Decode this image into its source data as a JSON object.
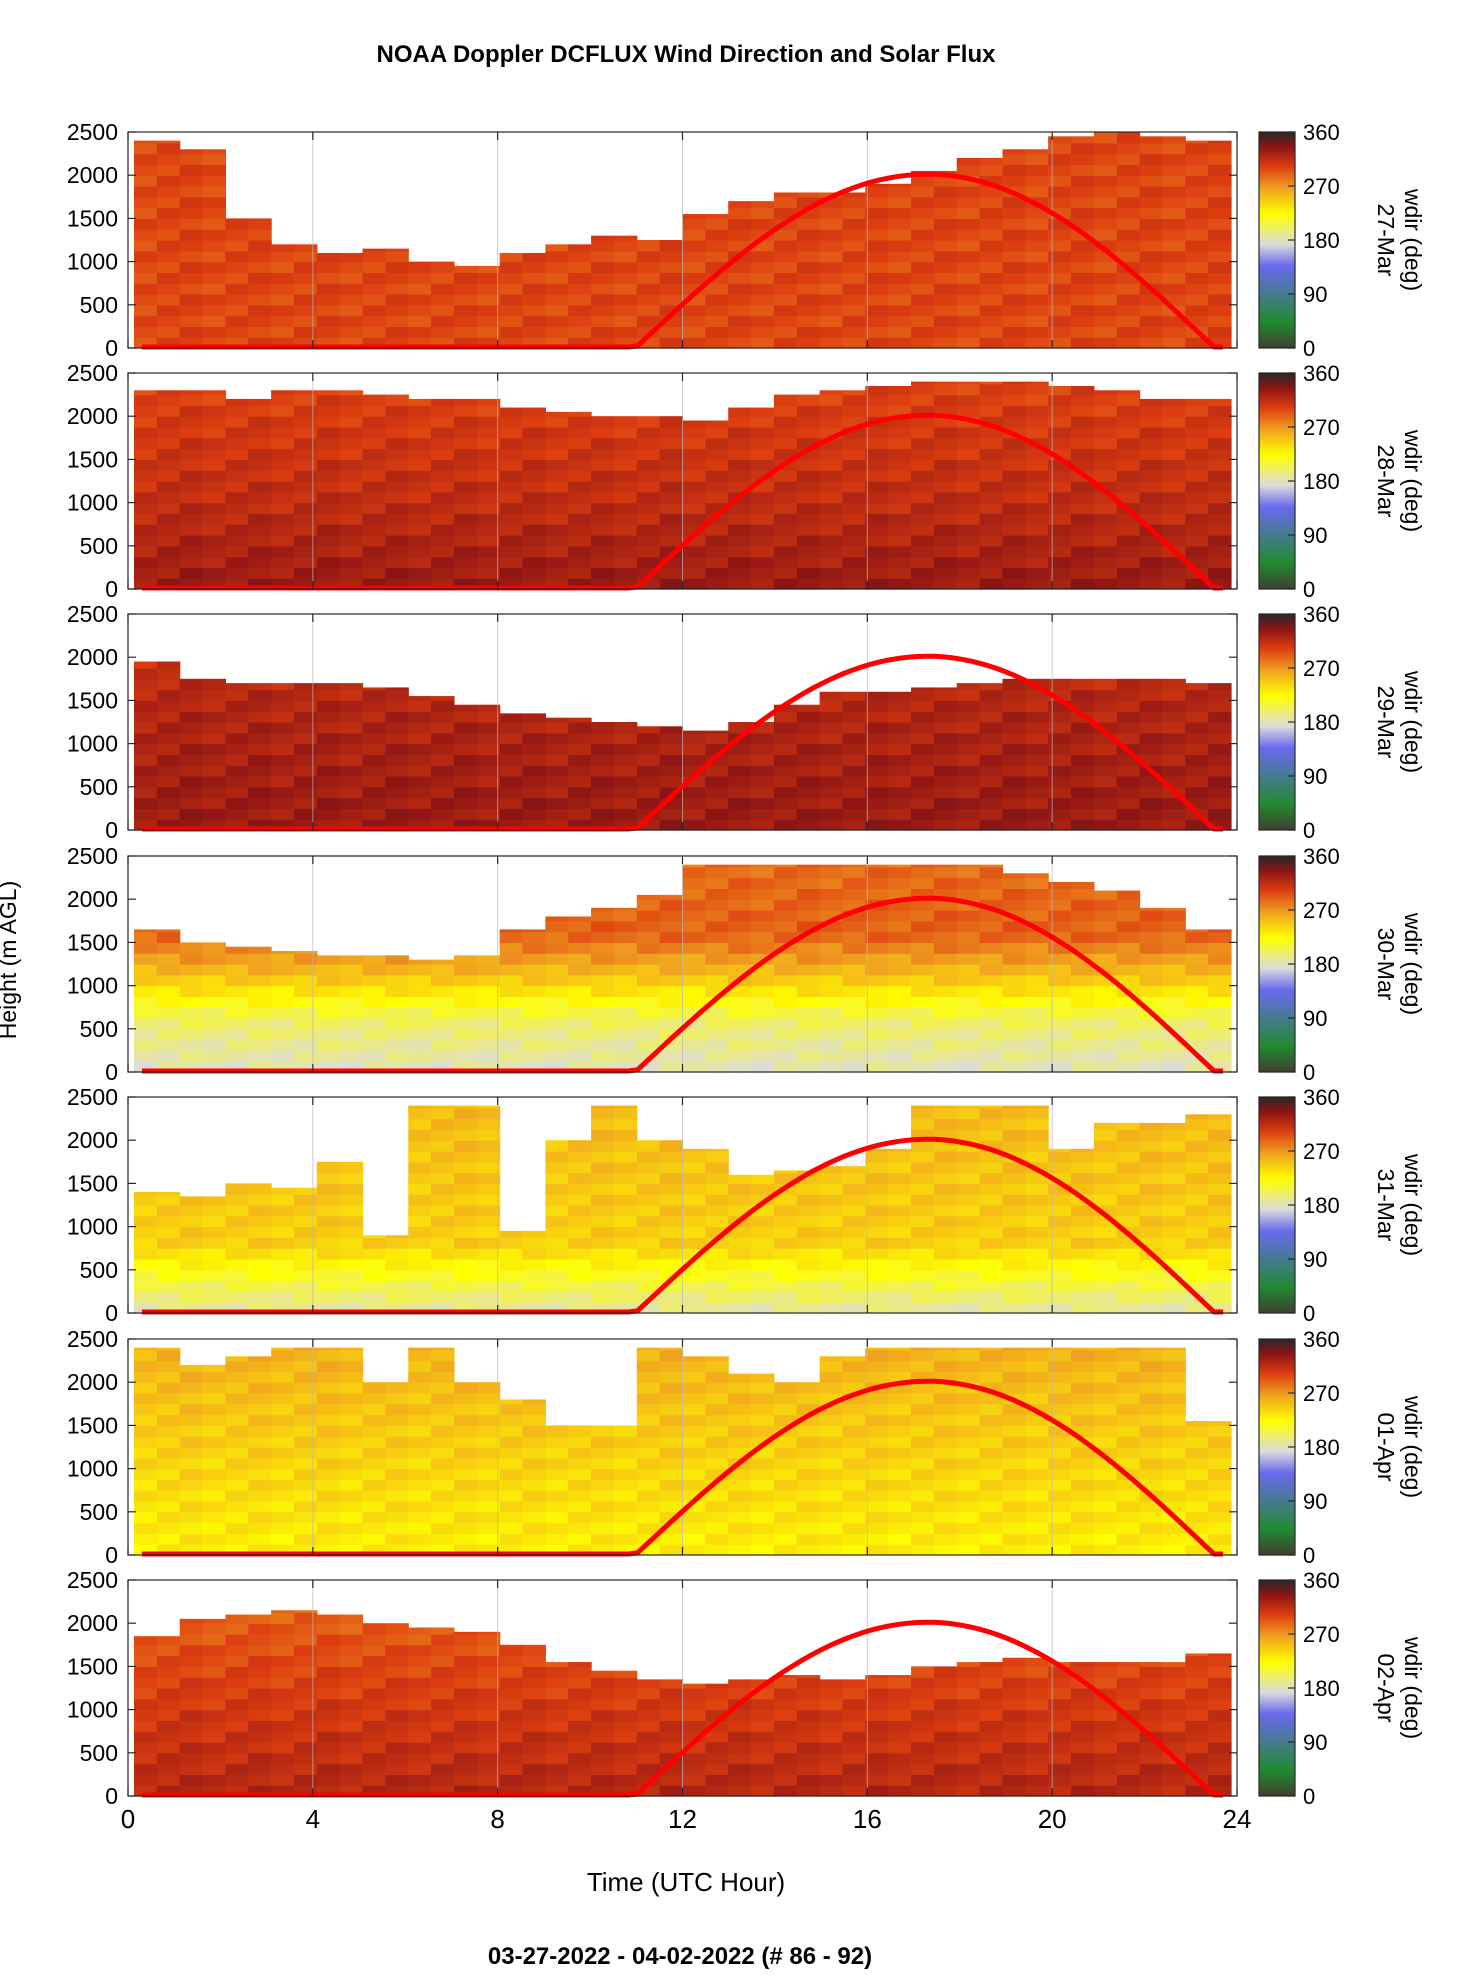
{
  "chart_data": {
    "type": "heatmap",
    "title": "NOAA Doppler DCFLUX Wind Direction and Solar Flux",
    "footer": "03-27-2022 - 04-02-2022   (# 86 - 92)",
    "xlabel": "Time (UTC Hour)",
    "ylabel": "Height (m AGL)",
    "xlim": [
      0,
      24
    ],
    "ylim": [
      0,
      2500
    ],
    "x_ticks": [
      "0",
      "4",
      "8",
      "12",
      "16",
      "20",
      "24"
    ],
    "y_ticks": [
      "0",
      "500",
      "1000",
      "1500",
      "2000",
      "2500"
    ],
    "colorbar": {
      "label": "wdir (deg)",
      "range": [
        0,
        360
      ],
      "ticks": [
        "0",
        "90",
        "180",
        "270",
        "360"
      ],
      "colors": [
        "#404030",
        "#208a30",
        "#6a6aee",
        "#dcdcdc",
        "#ffff00",
        "#f0a020",
        "#dd3d10",
        "#8c1414",
        "#282828"
      ]
    },
    "solar_flux_curve": {
      "color": "#ff0000",
      "sunrise_hour": 11.0,
      "sunset_hour": 23.5,
      "peak_hour": 17.3,
      "peak_height_equiv": 2000
    },
    "panels": [
      {
        "date": "27-Mar",
        "top_profile": [
          2400,
          2300,
          1500,
          1200,
          1100,
          1150,
          1000,
          950,
          1100,
          1200,
          1300,
          1250,
          1550,
          1700,
          1800,
          1800,
          1900,
          2050,
          2200,
          2300,
          2450,
          2500,
          2450,
          2400
        ],
        "profile": [
          {
            "h": 0,
            "wd": 300
          },
          {
            "h": 2500,
            "wd": 300
          }
        ]
      },
      {
        "date": "28-Mar",
        "top_profile": [
          2300,
          2300,
          2200,
          2300,
          2300,
          2250,
          2200,
          2200,
          2100,
          2050,
          2000,
          2000,
          1950,
          2100,
          2250,
          2300,
          2350,
          2400,
          2400,
          2400,
          2350,
          2300,
          2200,
          2200
        ],
        "profile": [
          {
            "h": 0,
            "wd": 330
          },
          {
            "h": 1000,
            "wd": 315
          },
          {
            "h": 2500,
            "wd": 300
          }
        ]
      },
      {
        "date": "29-Mar",
        "top_profile": [
          1950,
          1750,
          1700,
          1700,
          1700,
          1650,
          1550,
          1450,
          1350,
          1300,
          1250,
          1200,
          1150,
          1250,
          1450,
          1600,
          1600,
          1650,
          1700,
          1750,
          1750,
          1750,
          1750,
          1700
        ],
        "profile": [
          {
            "h": 0,
            "wd": 330
          },
          {
            "h": 1500,
            "wd": 320
          },
          {
            "h": 2000,
            "wd": 310
          }
        ]
      },
      {
        "date": "30-Mar",
        "top_profile": [
          1650,
          1500,
          1450,
          1400,
          1350,
          1350,
          1300,
          1350,
          1650,
          1800,
          1900,
          2050,
          2400,
          2400,
          2400,
          2400,
          2400,
          2400,
          2400,
          2300,
          2200,
          2100,
          1900,
          1650
        ],
        "profile": [
          {
            "h": 0,
            "wd": 180
          },
          {
            "h": 600,
            "wd": 200
          },
          {
            "h": 1100,
            "wd": 250
          },
          {
            "h": 1600,
            "wd": 290
          },
          {
            "h": 2500,
            "wd": 285
          }
        ]
      },
      {
        "date": "31-Mar",
        "top_profile": [
          1400,
          1350,
          1500,
          1450,
          1750,
          900,
          2400,
          2400,
          950,
          2000,
          2400,
          2000,
          1900,
          1600,
          1650,
          1700,
          1900,
          2400,
          2400,
          2400,
          1900,
          2200,
          2200,
          2300
        ],
        "profile": [
          {
            "h": 0,
            "wd": 185
          },
          {
            "h": 300,
            "wd": 205
          },
          {
            "h": 800,
            "wd": 245
          },
          {
            "h": 2500,
            "wd": 255
          }
        ]
      },
      {
        "date": "01-Apr",
        "top_profile": [
          2400,
          2200,
          2300,
          2400,
          2400,
          2000,
          2400,
          2000,
          1800,
          1500,
          1500,
          2400,
          2300,
          2100,
          2000,
          2300,
          2400,
          2400,
          2400,
          2400,
          2400,
          2400,
          2400,
          1550
        ],
        "profile": [
          {
            "h": 0,
            "wd": 230
          },
          {
            "h": 2500,
            "wd": 260
          }
        ]
      },
      {
        "date": "02-Apr",
        "top_profile": [
          1850,
          2050,
          2100,
          2150,
          2100,
          2000,
          1950,
          1900,
          1750,
          1550,
          1450,
          1350,
          1300,
          1350,
          1400,
          1350,
          1400,
          1500,
          1550,
          1600,
          1550,
          1550,
          1550,
          1650
        ],
        "profile": [
          {
            "h": 0,
            "wd": 320
          },
          {
            "h": 1500,
            "wd": 300
          },
          {
            "h": 2100,
            "wd": 290
          }
        ]
      }
    ]
  }
}
